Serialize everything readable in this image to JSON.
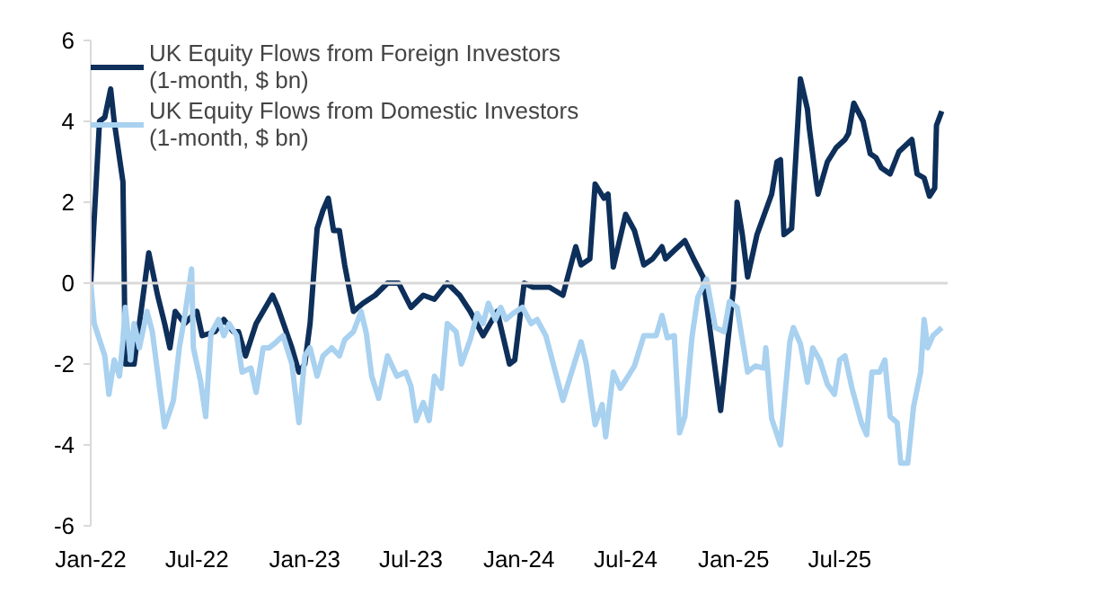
{
  "chart_data": {
    "type": "line",
    "xlim": [
      "2022-01-01",
      "2026-01-01"
    ],
    "xticks": [
      {
        "value": "2022-01-01",
        "label": "Jan-22"
      },
      {
        "value": "2022-07-01",
        "label": "Jul-22"
      },
      {
        "value": "2023-01-01",
        "label": "Jan-23"
      },
      {
        "value": "2023-07-01",
        "label": "Jul-23"
      },
      {
        "value": "2024-01-01",
        "label": "Jan-24"
      },
      {
        "value": "2024-07-01",
        "label": "Jul-24"
      },
      {
        "value": "2025-01-01",
        "label": "Jan-25"
      },
      {
        "value": "2025-07-01",
        "label": "Jul-25"
      }
    ],
    "ylim": [
      -6,
      6
    ],
    "yticks": [
      -6,
      -4,
      -2,
      0,
      2,
      4,
      6
    ],
    "grid": false,
    "legend": "top left",
    "marker": "none",
    "line_style": "solid",
    "ref_lines": [
      {
        "axis": "y",
        "value": 0,
        "color": "#d9d9d9"
      }
    ],
    "series": [
      {
        "name": "UK Equity Flows from Foreign Investors (1-month, $ bn)",
        "color": "#0d2f5a",
        "x": [
          "2022-01-01",
          "2022-01-16",
          "2022-01-25",
          "2022-02-04",
          "2022-02-10",
          "2022-02-25",
          "2022-03-01",
          "2022-03-16",
          "2022-03-25",
          "2022-04-10",
          "2022-04-25",
          "2022-05-07",
          "2022-05-16",
          "2022-05-25",
          "2022-06-10",
          "2022-07-01",
          "2022-07-10",
          "2022-08-01",
          "2022-08-16",
          "2022-09-01",
          "2022-09-10",
          "2022-09-22",
          "2022-10-10",
          "2022-11-07",
          "2022-11-16",
          "2022-12-10",
          "2022-12-22",
          "2023-01-01",
          "2023-01-10",
          "2023-01-22",
          "2023-02-01",
          "2023-02-10",
          "2023-02-19",
          "2023-03-01",
          "2023-03-10",
          "2023-03-25",
          "2023-04-10",
          "2023-05-01",
          "2023-05-22",
          "2023-06-10",
          "2023-07-01",
          "2023-07-22",
          "2023-08-10",
          "2023-09-01",
          "2023-09-22",
          "2023-10-10",
          "2023-11-01",
          "2023-11-25",
          "2023-12-16",
          "2023-12-25",
          "2024-01-10",
          "2024-01-25",
          "2024-02-22",
          "2024-03-16",
          "2024-04-07",
          "2024-04-16",
          "2024-05-01",
          "2024-05-10",
          "2024-05-25",
          "2024-06-01",
          "2024-06-10",
          "2024-07-01",
          "2024-07-16",
          "2024-08-01",
          "2024-08-16",
          "2024-09-01",
          "2024-09-07",
          "2024-09-25",
          "2024-10-10",
          "2024-10-25",
          "2024-11-10",
          "2024-12-10",
          "2025-01-01",
          "2025-01-07",
          "2025-01-16",
          "2025-01-25",
          "2025-02-10",
          "2025-02-25",
          "2025-03-07",
          "2025-03-16",
          "2025-03-22",
          "2025-03-28",
          "2025-04-10",
          "2025-04-25",
          "2025-05-07",
          "2025-05-10",
          "2025-05-22",
          "2025-05-25",
          "2025-06-10",
          "2025-06-25",
          "2025-07-10",
          "2025-07-16",
          "2025-07-25",
          "2025-08-10",
          "2025-08-22",
          "2025-09-01",
          "2025-09-10",
          "2025-09-25",
          "2025-10-10",
          "2025-11-01",
          "2025-11-10",
          "2025-11-22",
          "2025-12-01",
          "2025-12-10",
          "2025-12-13",
          "2025-12-22"
        ],
        "values": [
          0,
          4.0,
          4.1,
          4.8,
          4.0,
          2.5,
          -2.0,
          -2.0,
          -1.0,
          0.75,
          -0.3,
          -1.0,
          -1.6,
          -0.7,
          -1.0,
          -0.7,
          -1.3,
          -1.2,
          -0.9,
          -1.2,
          -1.2,
          -1.8,
          -1.0,
          -0.3,
          -0.6,
          -1.6,
          -2.2,
          -2.0,
          -1.0,
          1.35,
          1.8,
          2.1,
          1.3,
          1.3,
          0.45,
          -0.7,
          -0.5,
          -0.3,
          0,
          0,
          -0.6,
          -0.3,
          -0.4,
          0,
          -0.3,
          -0.7,
          -1.3,
          -0.7,
          -2.0,
          -1.9,
          0,
          -0.1,
          -0.1,
          -0.3,
          0.9,
          0.45,
          0.6,
          2.45,
          2.1,
          2.2,
          0.4,
          1.7,
          1.3,
          0.45,
          0.6,
          0.9,
          0.6,
          0.85,
          1.05,
          0.6,
          0.15,
          -3.15,
          -0.1,
          2.0,
          1.2,
          0.15,
          1.2,
          1.8,
          2.2,
          3.0,
          3.05,
          1.2,
          1.35,
          5.05,
          4.3,
          3.85,
          2.5,
          2.2,
          3.0,
          3.35,
          3.55,
          3.7,
          4.45,
          4.0,
          3.2,
          3.1,
          2.85,
          2.7,
          3.25,
          3.55,
          2.7,
          2.6,
          2.15,
          2.35,
          3.9,
          4.25
        ]
      },
      {
        "name": "UK Equity Flows from Domestic Investors (1-month, $ bn)",
        "color": "#a9d1f0",
        "x": [
          "2022-01-01",
          "2022-01-07",
          "2022-01-16",
          "2022-01-25",
          "2022-02-01",
          "2022-02-10",
          "2022-02-19",
          "2022-02-25",
          "2022-03-01",
          "2022-03-10",
          "2022-03-16",
          "2022-03-25",
          "2022-04-07",
          "2022-04-16",
          "2022-04-25",
          "2022-05-07",
          "2022-05-22",
          "2022-06-01",
          "2022-06-10",
          "2022-06-22",
          "2022-06-25",
          "2022-07-07",
          "2022-07-16",
          "2022-07-25",
          "2022-08-07",
          "2022-08-16",
          "2022-08-25",
          "2022-09-07",
          "2022-09-16",
          "2022-10-01",
          "2022-10-10",
          "2022-10-22",
          "2022-11-01",
          "2022-11-10",
          "2022-11-25",
          "2022-12-10",
          "2022-12-22",
          "2023-01-01",
          "2023-01-10",
          "2023-01-22",
          "2023-02-01",
          "2023-02-16",
          "2023-03-01",
          "2023-03-10",
          "2023-03-25",
          "2023-04-07",
          "2023-04-16",
          "2023-04-25",
          "2023-05-07",
          "2023-05-22",
          "2023-06-07",
          "2023-06-22",
          "2023-07-01",
          "2023-07-10",
          "2023-07-22",
          "2023-08-01",
          "2023-08-10",
          "2023-08-22",
          "2023-09-01",
          "2023-09-16",
          "2023-09-25",
          "2023-10-10",
          "2023-10-22",
          "2023-11-01",
          "2023-11-10",
          "2023-11-22",
          "2023-12-01",
          "2023-12-10",
          "2023-12-22",
          "2024-01-07",
          "2024-01-22",
          "2024-02-01",
          "2024-02-16",
          "2024-03-16",
          "2024-04-16",
          "2024-04-25",
          "2024-05-10",
          "2024-05-22",
          "2024-05-28",
          "2024-06-10",
          "2024-06-22",
          "2024-07-01",
          "2024-07-16",
          "2024-08-01",
          "2024-08-22",
          "2024-09-01",
          "2024-09-10",
          "2024-09-22",
          "2024-10-01",
          "2024-10-10",
          "2024-10-22",
          "2024-11-01",
          "2024-11-16",
          "2024-12-01",
          "2024-12-16",
          "2024-12-25",
          "2025-01-07",
          "2025-01-16",
          "2025-01-25",
          "2025-02-07",
          "2025-02-22",
          "2025-02-25",
          "2025-03-07",
          "2025-03-22",
          "2025-04-07",
          "2025-04-13",
          "2025-04-25",
          "2025-05-07",
          "2025-05-16",
          "2025-05-28",
          "2025-06-10",
          "2025-06-22",
          "2025-07-01",
          "2025-07-10",
          "2025-07-22",
          "2025-08-07",
          "2025-08-16",
          "2025-08-25",
          "2025-09-07",
          "2025-09-16",
          "2025-09-25",
          "2025-10-07",
          "2025-10-13",
          "2025-10-25",
          "2025-11-04",
          "2025-11-16",
          "2025-11-22",
          "2025-11-28",
          "2025-12-07",
          "2025-12-22"
        ],
        "values": [
          0,
          -1.0,
          -1.4,
          -1.8,
          -2.75,
          -1.9,
          -2.3,
          -1.4,
          -0.6,
          -1.9,
          -1.0,
          -1.6,
          -0.7,
          -1.2,
          -2.2,
          -3.55,
          -2.9,
          -1.6,
          -0.85,
          0.35,
          -1.6,
          -2.4,
          -3.3,
          -1.25,
          -0.9,
          -1.3,
          -1.0,
          -1.3,
          -2.2,
          -2.1,
          -2.7,
          -1.6,
          -1.6,
          -1.5,
          -1.3,
          -2.0,
          -3.45,
          -1.8,
          -1.6,
          -2.3,
          -1.8,
          -1.6,
          -1.8,
          -1.4,
          -1.2,
          -0.7,
          -1.25,
          -2.3,
          -2.85,
          -1.8,
          -2.3,
          -2.2,
          -2.55,
          -3.4,
          -2.95,
          -3.4,
          -2.3,
          -2.6,
          -1.0,
          -1.2,
          -2.0,
          -1.4,
          -0.75,
          -1.0,
          -0.5,
          -0.9,
          -0.6,
          -0.9,
          -0.75,
          -0.6,
          -1.0,
          -0.9,
          -1.3,
          -2.9,
          -1.45,
          -2.0,
          -3.5,
          -3.0,
          -3.8,
          -2.2,
          -2.6,
          -2.4,
          -2.05,
          -1.3,
          -1.3,
          -0.8,
          -1.35,
          -1.3,
          -3.7,
          -3.3,
          -1.35,
          -0.35,
          0.1,
          -1.1,
          -1.2,
          -0.45,
          -0.6,
          -1.4,
          -2.2,
          -2.05,
          -2.1,
          -1.6,
          -3.35,
          -4.0,
          -1.45,
          -1.1,
          -1.5,
          -2.45,
          -1.6,
          -1.9,
          -2.5,
          -2.75,
          -1.9,
          -1.8,
          -2.6,
          -3.45,
          -3.75,
          -2.2,
          -2.2,
          -1.9,
          -3.3,
          -3.45,
          -4.45,
          -4.45,
          -3.05,
          -2.2,
          -0.9,
          -1.6,
          -1.3,
          -1.1
        ]
      }
    ]
  }
}
